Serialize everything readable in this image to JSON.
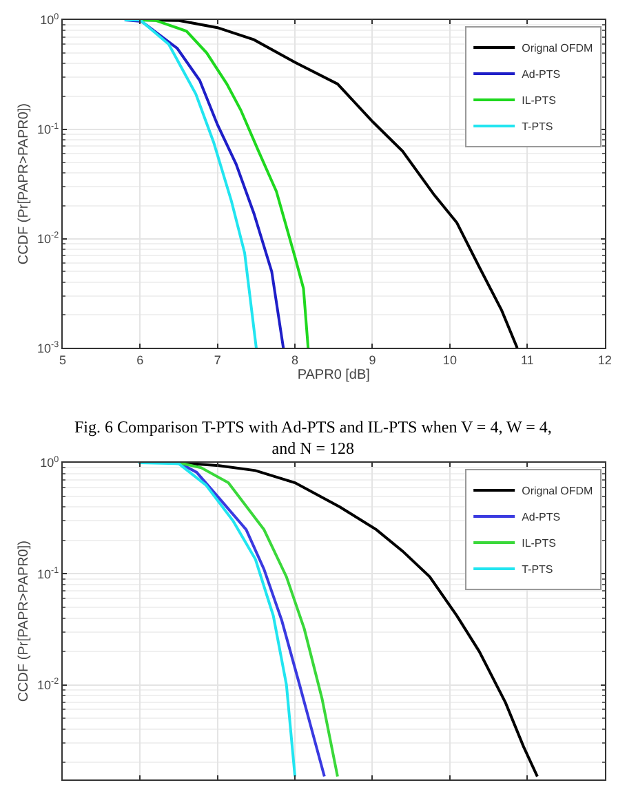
{
  "chart_data": [
    {
      "type": "line",
      "xlabel": "PAPR0 [dB]",
      "ylabel": "CCDF (Pr[PAPR>PAPR0])",
      "log": "y",
      "grid": true,
      "legend": "top right",
      "line_style": "solid",
      "marker": "none",
      "xlim": [
        5,
        12
      ],
      "xticks": [
        5,
        6,
        7,
        8,
        9,
        10,
        11,
        12
      ],
      "ylim": [
        0.001,
        1
      ],
      "yticks": [
        {
          "value": 1,
          "label": "10$^{0}$"
        },
        {
          "value": 0.1,
          "label": "10$^{-1}$"
        },
        {
          "value": 0.01,
          "label": "10$^{-2}$"
        },
        {
          "value": 0.001,
          "label": "10$^{-3}$"
        }
      ],
      "annotations": [
        "Fig. 6 Comparison T-PTS with Ad-PTS and IL-PTS when V = 4, W = 4, and N = 128"
      ],
      "series": [
        {
          "name": "Orignal OFDM",
          "color": "#000000",
          "x": [
            6.0,
            6.5,
            7.0,
            7.47,
            8.0,
            8.55,
            9.01,
            9.39,
            9.8,
            10.09,
            10.38,
            10.67,
            10.87
          ],
          "values": [
            1,
            0.99,
            0.85,
            0.66,
            0.41,
            0.26,
            0.116,
            0.063,
            0.025,
            0.014,
            0.0055,
            0.0022,
            0.001
          ]
        },
        {
          "name": "Ad-PTS",
          "color": "#1f1fc8",
          "x": [
            5.8,
            6.02,
            6.48,
            6.77,
            7.0,
            7.24,
            7.47,
            7.7,
            7.85
          ],
          "values": [
            1,
            0.97,
            0.55,
            0.28,
            0.11,
            0.048,
            0.017,
            0.005,
            0.001
          ]
        },
        {
          "name": "IL-PTS",
          "color": "#1fd81f",
          "x": [
            6.0,
            6.2,
            6.6,
            6.86,
            7.12,
            7.3,
            7.53,
            7.76,
            8.0,
            8.11,
            8.17
          ],
          "values": [
            1,
            0.99,
            0.79,
            0.5,
            0.26,
            0.15,
            0.063,
            0.027,
            0.0068,
            0.0035,
            0.001
          ]
        },
        {
          "name": "T-PTS",
          "color": "#22e5f0",
          "x": [
            5.8,
            6.0,
            6.37,
            6.72,
            6.95,
            7.18,
            7.35,
            7.5
          ],
          "values": [
            1,
            1,
            0.6,
            0.21,
            0.076,
            0.022,
            0.0074,
            0.001
          ]
        }
      ]
    },
    {
      "type": "line",
      "ylabel": "CCDF (Pr[PAPR>PAPR0])",
      "log": "y",
      "grid": true,
      "legend": "top right",
      "line_style": "solid",
      "marker": "none",
      "tick_labels": "y",
      "xlim": [
        5,
        12
      ],
      "xticks": [
        {
          "value": 5,
          "label": null
        },
        {
          "value": 6,
          "label": null
        },
        {
          "value": 7,
          "label": null
        },
        {
          "value": 8,
          "label": null
        },
        {
          "value": 9,
          "label": null
        },
        {
          "value": 10,
          "label": null
        },
        {
          "value": 11,
          "label": null
        },
        {
          "value": 12,
          "label": null
        }
      ],
      "ylim": [
        0.0014,
        1
      ],
      "yticks": [
        {
          "value": 1,
          "label": "10$^{0}$"
        },
        {
          "value": 0.1,
          "label": "10$^{-1}$"
        },
        {
          "value": 0.01,
          "label": "10$^{-2}$"
        }
      ],
      "series": [
        {
          "name": "Orignal OFDM",
          "color": "#000000",
          "x": [
            6.5,
            7.02,
            7.49,
            8.0,
            8.58,
            9.05,
            9.39,
            9.74,
            10.09,
            10.38,
            10.72,
            10.95,
            11.13
          ],
          "values": [
            1,
            0.94,
            0.85,
            0.66,
            0.4,
            0.25,
            0.16,
            0.094,
            0.042,
            0.02,
            0.0069,
            0.0028,
            0.0015
          ]
        },
        {
          "name": "Ad-PTS",
          "color": "#3a3ae0",
          "x": [
            6.5,
            6.73,
            7.02,
            7.37,
            7.6,
            7.83,
            8.06,
            8.38
          ],
          "values": [
            1,
            0.82,
            0.48,
            0.25,
            0.11,
            0.038,
            0.01,
            0.0015
          ]
        },
        {
          "name": "IL-PTS",
          "color": "#3ad83a",
          "x": [
            6.5,
            6.79,
            7.14,
            7.6,
            7.89,
            8.12,
            8.35,
            8.55
          ],
          "values": [
            1,
            0.9,
            0.66,
            0.25,
            0.094,
            0.032,
            0.0075,
            0.0015
          ]
        },
        {
          "name": "T-PTS",
          "color": "#22e5f0",
          "x": [
            5.98,
            6.5,
            6.85,
            7.2,
            7.49,
            7.72,
            7.89,
            8.0
          ],
          "values": [
            1,
            0.98,
            0.63,
            0.3,
            0.135,
            0.042,
            0.01,
            0.0015
          ]
        }
      ]
    }
  ]
}
